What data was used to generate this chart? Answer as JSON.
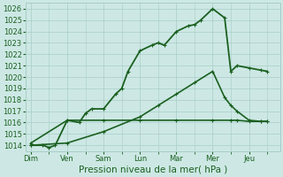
{
  "background_color": "#cde8e4",
  "grid_color": "#a8ccc8",
  "line_color": "#1a6020",
  "x_labels": [
    "Dim",
    "Ven",
    "Sam",
    "Lun",
    "Mar",
    "Mer",
    "Jeu"
  ],
  "x_ticks": [
    0,
    1,
    2,
    3,
    4,
    5,
    6
  ],
  "xlim": [
    -0.15,
    6.85
  ],
  "ylim": [
    1013.5,
    1026.5
  ],
  "yticks": [
    1014,
    1015,
    1016,
    1017,
    1018,
    1019,
    1020,
    1021,
    1022,
    1023,
    1024,
    1025,
    1026
  ],
  "xlabel": "Pression niveau de la mer( hPa )",
  "series": [
    {
      "x": [
        0,
        0.33,
        0.5,
        0.67,
        1.0,
        1.33,
        1.5,
        1.67,
        2.0,
        2.33,
        2.5,
        2.67,
        3.0,
        3.33,
        3.5,
        3.67,
        4.0,
        4.33,
        4.5,
        4.67,
        5.0,
        5.33,
        5.5,
        5.67,
        6.0,
        6.33,
        6.5
      ],
      "y": [
        1014,
        1014,
        1013.8,
        1014.0,
        1016.2,
        1016.0,
        1016.8,
        1017.2,
        1017.2,
        1018.5,
        1019.0,
        1020.5,
        1022.3,
        1022.8,
        1023.0,
        1022.8,
        1024.0,
        1024.5,
        1024.6,
        1025.0,
        1026.0,
        1025.2,
        1020.5,
        1021.0,
        1020.8,
        1020.6,
        1020.5
      ],
      "marker": "+",
      "lw": 1.3
    },
    {
      "x": [
        0,
        1.0,
        2.0,
        3.0,
        4.0,
        5.0,
        5.5,
        5.67,
        6.0,
        6.33,
        6.5
      ],
      "y": [
        1014.2,
        1016.2,
        1016.2,
        1016.2,
        1016.2,
        1016.2,
        1016.2,
        1016.2,
        1016.1,
        1016.1,
        1016.1
      ],
      "marker": "+",
      "lw": 1.2
    },
    {
      "x": [
        0,
        1.0,
        2.0,
        3.0,
        3.5,
        4.0,
        4.5,
        5.0,
        5.33,
        5.5,
        5.67,
        6.0,
        6.33,
        6.5
      ],
      "y": [
        1014.0,
        1014.2,
        1015.2,
        1016.5,
        1017.5,
        1018.5,
        1019.5,
        1020.5,
        1018.2,
        1017.5,
        1017.0,
        1016.2,
        1016.1,
        1016.1
      ],
      "marker": "+",
      "lw": 1.2
    }
  ],
  "tick_fontsize": 6.0,
  "xlabel_fontsize": 7.5
}
